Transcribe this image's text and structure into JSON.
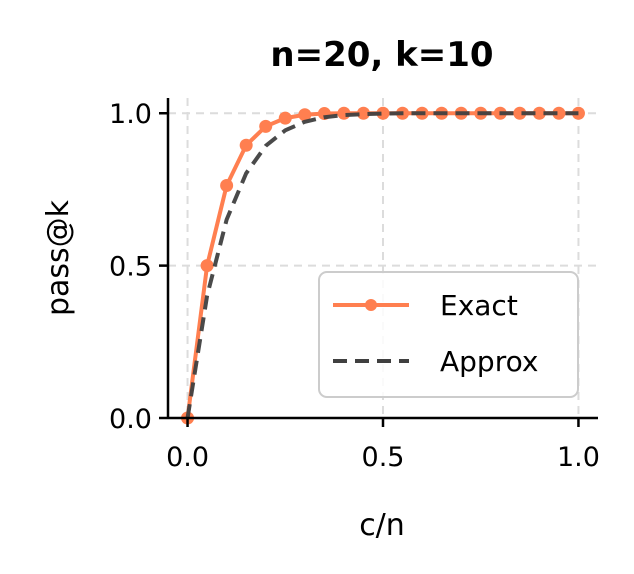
{
  "chart_data": {
    "type": "line",
    "title": "n=20, k=10",
    "xlabel": "c/n",
    "ylabel": "pass@k",
    "xlim": [
      -0.05,
      1.05
    ],
    "ylim": [
      0.0,
      1.05
    ],
    "xticks": [
      0.0,
      0.5,
      1.0
    ],
    "xtick_labels": [
      "0.0",
      "0.5",
      "1.0"
    ],
    "yticks": [
      0.0,
      0.5,
      1.0
    ],
    "ytick_labels": [
      "0.0",
      "0.5",
      "1.0"
    ],
    "grid": true,
    "legend_position": "lower-right",
    "series": [
      {
        "name": "Exact",
        "style": "solid-with-markers",
        "color": "#ff7f50",
        "x": [
          0.0,
          0.05,
          0.1,
          0.15,
          0.2,
          0.25,
          0.3,
          0.35,
          0.4,
          0.45,
          0.5,
          0.55,
          0.6,
          0.65,
          0.7,
          0.75,
          0.8,
          0.85,
          0.9,
          0.95,
          1.0
        ],
        "y": [
          0.0,
          0.5,
          0.763,
          0.895,
          0.957,
          0.984,
          0.995,
          0.999,
          1.0,
          1.0,
          1.0,
          1.0,
          1.0,
          1.0,
          1.0,
          1.0,
          1.0,
          1.0,
          1.0,
          1.0,
          1.0
        ]
      },
      {
        "name": "Approx",
        "style": "dashed",
        "color": "#404040",
        "x": [
          0.0,
          0.05,
          0.1,
          0.15,
          0.2,
          0.25,
          0.3,
          0.35,
          0.4,
          0.45,
          0.5,
          0.55,
          0.6,
          0.65,
          0.7,
          0.75,
          0.8,
          0.85,
          0.9,
          0.95,
          1.0
        ],
        "y": [
          0.0,
          0.401,
          0.651,
          0.803,
          0.893,
          0.944,
          0.972,
          0.987,
          0.994,
          0.997,
          0.999,
          1.0,
          1.0,
          1.0,
          1.0,
          1.0,
          1.0,
          1.0,
          1.0,
          1.0,
          1.0
        ]
      }
    ]
  }
}
